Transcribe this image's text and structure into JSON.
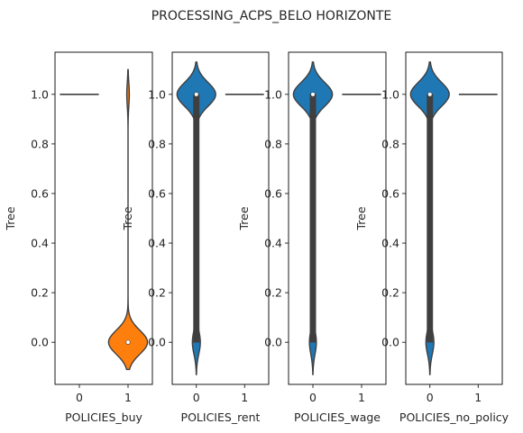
{
  "chart_data": [
    {
      "type": "violin",
      "title": "PROCESSING_ACPS_BELO HORIZONTE",
      "xlabel": "POLICIES_buy",
      "ylabel": "Tree",
      "categories": [
        "0",
        "1"
      ],
      "ylim": [
        -0.17,
        1.17
      ],
      "yticks": [
        0.0,
        0.2,
        0.4,
        0.6,
        0.8,
        1.0
      ],
      "violins": [
        {
          "category": "0",
          "color": "#1f77b4",
          "kind": "constant",
          "value": 1.0,
          "median": 1.0
        },
        {
          "category": "1",
          "color": "#ff7f0e",
          "kind": "bimodal",
          "modes": [
            0.0,
            1.0
          ],
          "weights": [
            0.94,
            0.06
          ],
          "range": [
            -0.11,
            1.1
          ],
          "median": 0.0,
          "q1": 0.0,
          "q3": 0.0
        }
      ]
    },
    {
      "type": "violin",
      "xlabel": "POLICIES_rent",
      "ylabel": "Tree",
      "categories": [
        "0",
        "1"
      ],
      "ylim": [
        -0.17,
        1.17
      ],
      "yticks": [
        0.0,
        0.2,
        0.4,
        0.6,
        0.8,
        1.0
      ],
      "violins": [
        {
          "category": "0",
          "color": "#1f77b4",
          "kind": "bimodal",
          "modes": [
            0.0,
            1.0
          ],
          "weights": [
            0.17,
            0.83
          ],
          "range": [
            -0.13,
            1.13
          ],
          "median": 1.0,
          "q1": 0.0,
          "q3": 1.0
        },
        {
          "category": "1",
          "color": "#ff7f0e",
          "kind": "constant",
          "value": 1.0,
          "median": 1.0
        }
      ]
    },
    {
      "type": "violin",
      "xlabel": "POLICIES_wage",
      "ylabel": "Tree",
      "categories": [
        "0",
        "1"
      ],
      "ylim": [
        -0.17,
        1.17
      ],
      "yticks": [
        0.0,
        0.2,
        0.4,
        0.6,
        0.8,
        1.0
      ],
      "violins": [
        {
          "category": "0",
          "color": "#1f77b4",
          "kind": "bimodal",
          "modes": [
            0.0,
            1.0
          ],
          "weights": [
            0.15,
            0.85
          ],
          "range": [
            -0.13,
            1.13
          ],
          "median": 1.0,
          "q1": 0.0,
          "q3": 1.0
        },
        {
          "category": "1",
          "color": "#ff7f0e",
          "kind": "constant",
          "value": 1.0,
          "median": 1.0
        }
      ]
    },
    {
      "type": "violin",
      "xlabel": "POLICIES_no_policy",
      "ylabel": "Tree",
      "categories": [
        "0",
        "1"
      ],
      "ylim": [
        -0.17,
        1.17
      ],
      "yticks": [
        0.0,
        0.2,
        0.4,
        0.6,
        0.8,
        1.0
      ],
      "violins": [
        {
          "category": "0",
          "color": "#1f77b4",
          "kind": "bimodal",
          "modes": [
            0.0,
            1.0
          ],
          "weights": [
            0.17,
            0.83
          ],
          "range": [
            -0.13,
            1.13
          ],
          "median": 1.0,
          "q1": 0.0,
          "q3": 1.0
        },
        {
          "category": "1",
          "color": "#ff7f0e",
          "kind": "constant",
          "value": 1.0,
          "median": 1.0
        }
      ]
    }
  ]
}
